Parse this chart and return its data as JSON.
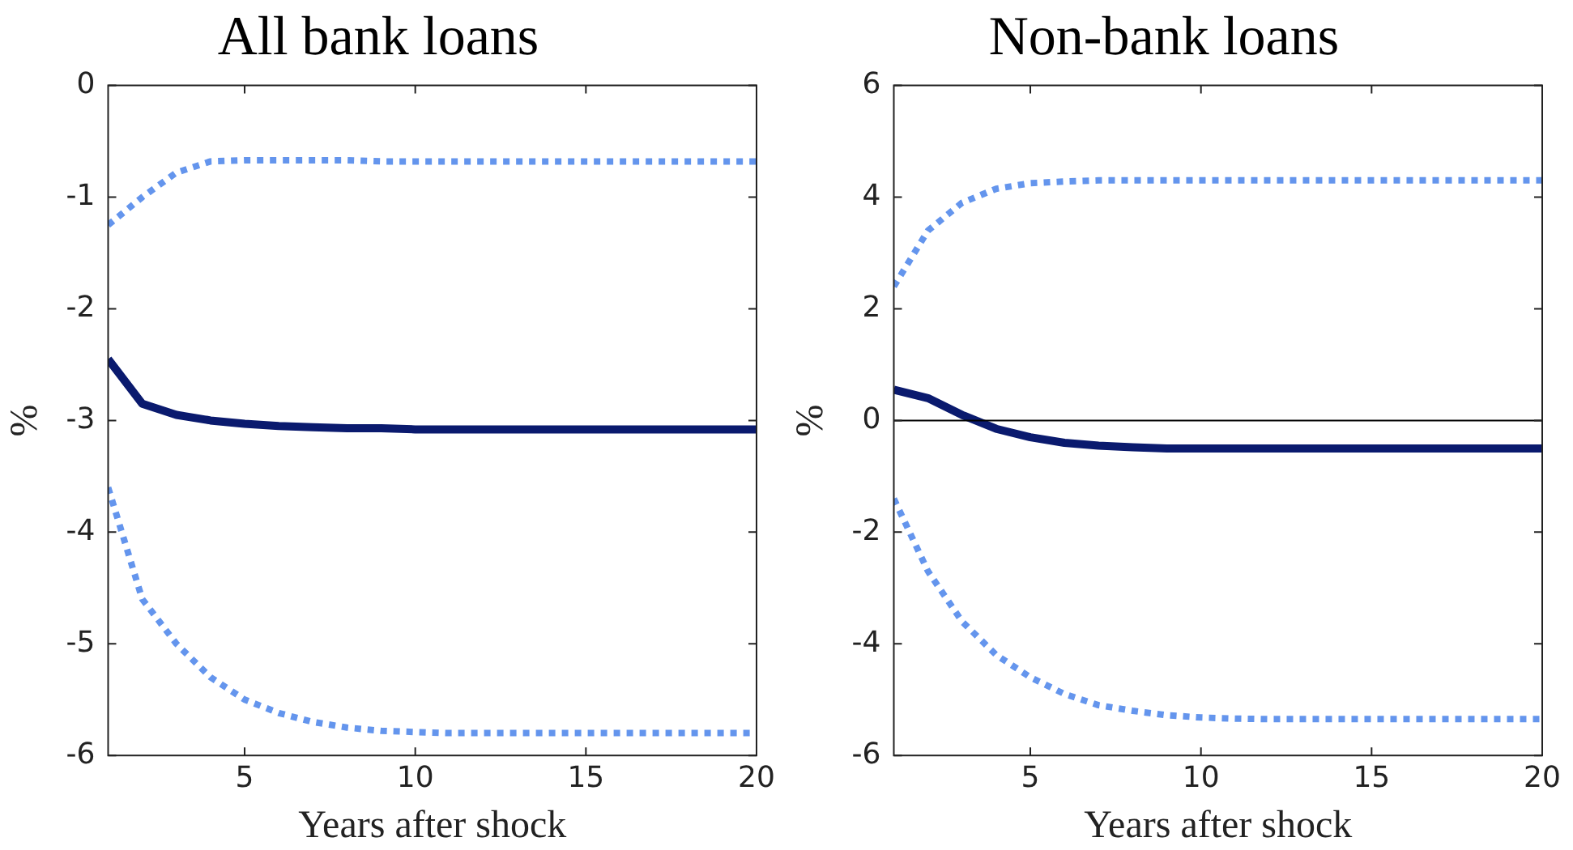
{
  "chart_data": [
    {
      "type": "line",
      "title": "All bank loans",
      "xlabel": "Years after shock",
      "ylabel": "%",
      "x": [
        1,
        2,
        3,
        4,
        5,
        6,
        7,
        8,
        9,
        10,
        11,
        12,
        13,
        14,
        15,
        16,
        17,
        18,
        19,
        20
      ],
      "xlim": [
        1,
        20
      ],
      "xticks": [
        5,
        10,
        15,
        20
      ],
      "ylim": [
        -6,
        0
      ],
      "yticks": [
        -6,
        -5,
        -4,
        -3,
        -2,
        -1,
        0
      ],
      "series": [
        {
          "color": "#6495ed",
          "line_style": "dotted",
          "values": [
            -1.25,
            -1.0,
            -0.78,
            -0.68,
            -0.67,
            -0.67,
            -0.67,
            -0.67,
            -0.68,
            -0.68,
            -0.68,
            -0.68,
            -0.68,
            -0.68,
            -0.68,
            -0.68,
            -0.68,
            -0.68,
            -0.68,
            -0.68
          ]
        },
        {
          "color": "#6495ed",
          "line_style": "dotted",
          "values": [
            -3.6,
            -4.6,
            -5.0,
            -5.3,
            -5.5,
            -5.62,
            -5.7,
            -5.75,
            -5.78,
            -5.79,
            -5.8,
            -5.8,
            -5.8,
            -5.8,
            -5.8,
            -5.8,
            -5.8,
            -5.8,
            -5.8,
            -5.8
          ]
        },
        {
          "color": "#0a1a6e",
          "line_style": "solid",
          "values": [
            -2.45,
            -2.85,
            -2.95,
            -3.0,
            -3.03,
            -3.05,
            -3.06,
            -3.07,
            -3.07,
            -3.08,
            -3.08,
            -3.08,
            -3.08,
            -3.08,
            -3.08,
            -3.08,
            -3.08,
            -3.08,
            -3.08,
            -3.08
          ]
        }
      ]
    },
    {
      "type": "line",
      "title": "Non-bank loans",
      "xlabel": "Years after shock",
      "ylabel": "%",
      "x": [
        1,
        2,
        3,
        4,
        5,
        6,
        7,
        8,
        9,
        10,
        11,
        12,
        13,
        14,
        15,
        16,
        17,
        18,
        19,
        20
      ],
      "xlim": [
        1,
        20
      ],
      "xticks": [
        5,
        10,
        15,
        20
      ],
      "ylim": [
        -6,
        6
      ],
      "yticks": [
        -6,
        -4,
        -2,
        0,
        2,
        4,
        6
      ],
      "ref_lines": [
        {
          "axis": "y",
          "value": 0,
          "color": "#000000"
        }
      ],
      "series": [
        {
          "color": "#6495ed",
          "line_style": "dotted",
          "values": [
            2.4,
            3.4,
            3.9,
            4.15,
            4.25,
            4.28,
            4.3,
            4.3,
            4.3,
            4.3,
            4.3,
            4.3,
            4.3,
            4.3,
            4.3,
            4.3,
            4.3,
            4.3,
            4.3,
            4.3
          ]
        },
        {
          "color": "#6495ed",
          "line_style": "dotted",
          "values": [
            -1.4,
            -2.7,
            -3.6,
            -4.2,
            -4.6,
            -4.9,
            -5.1,
            -5.2,
            -5.28,
            -5.32,
            -5.34,
            -5.35,
            -5.35,
            -5.35,
            -5.35,
            -5.35,
            -5.35,
            -5.35,
            -5.35,
            -5.35
          ]
        },
        {
          "color": "#0a1a6e",
          "line_style": "solid",
          "values": [
            0.55,
            0.4,
            0.1,
            -0.15,
            -0.3,
            -0.4,
            -0.45,
            -0.48,
            -0.5,
            -0.5,
            -0.5,
            -0.5,
            -0.5,
            -0.5,
            -0.5,
            -0.5,
            -0.5,
            -0.5,
            -0.5,
            -0.5
          ]
        }
      ]
    }
  ]
}
